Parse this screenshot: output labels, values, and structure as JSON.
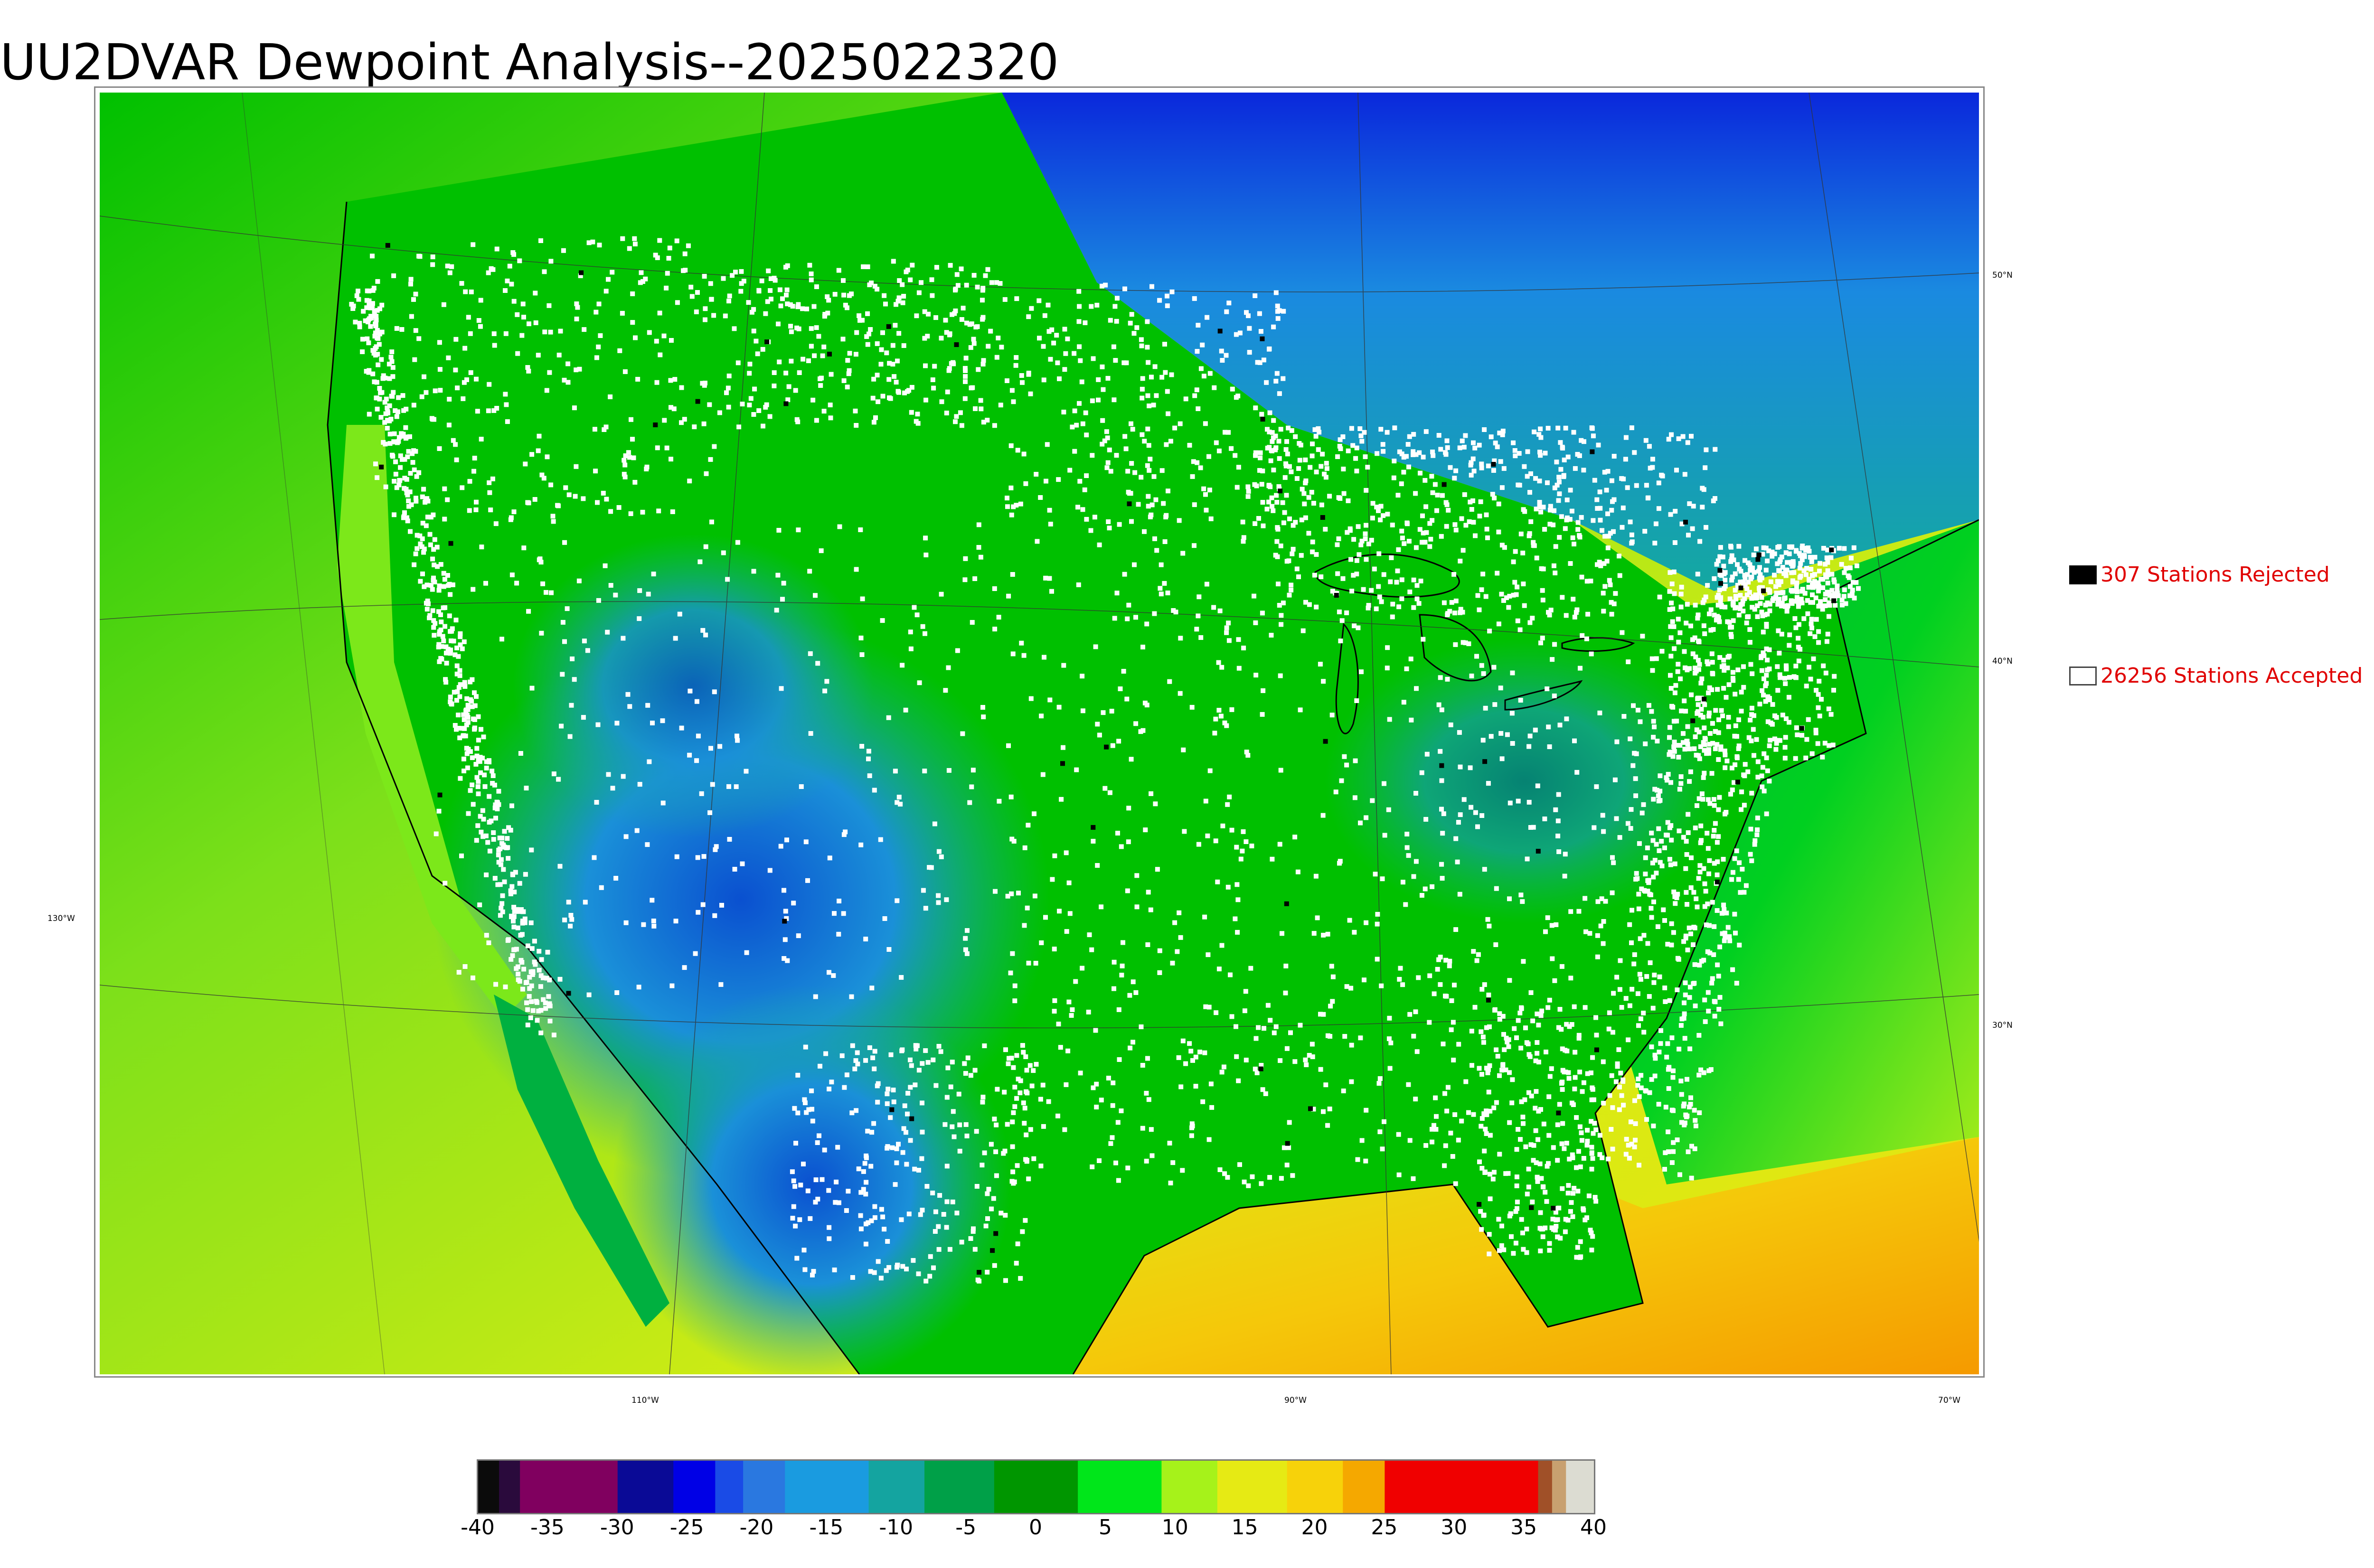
{
  "title": "UU2DVAR Dewpoint Analysis--2025022320",
  "legend": {
    "rejected": {
      "label": "307 Stations Rejected",
      "color": "#000000"
    },
    "accepted": {
      "label": "26256 Stations Accepted",
      "color": "#ffffff"
    }
  },
  "latitude_labels": [
    "50°N",
    "40°N",
    "30°N"
  ],
  "longitude_labels": [
    "130°W",
    "110°W",
    "90°W",
    "70°W"
  ],
  "colorbar": {
    "ticks": [
      "-40",
      "-35",
      "-30",
      "-25",
      "-20",
      "-15",
      "-10",
      "-5",
      "0",
      "5",
      "10",
      "15",
      "20",
      "25",
      "30",
      "35",
      "40"
    ],
    "range": [
      -40,
      40
    ],
    "bands": [
      {
        "from": -40,
        "to": -38.5,
        "color": "#0b0b0b"
      },
      {
        "from": -38.5,
        "to": -37,
        "color": "#2a0a3c"
      },
      {
        "from": -37,
        "to": -30,
        "color": "#80005f"
      },
      {
        "from": -30,
        "to": -26,
        "color": "#0a0a96"
      },
      {
        "from": -26,
        "to": -23,
        "color": "#0000e6"
      },
      {
        "from": -23,
        "to": -21,
        "color": "#1a4be6"
      },
      {
        "from": -21,
        "to": -18,
        "color": "#2a78e0"
      },
      {
        "from": -18,
        "to": -12,
        "color": "#1a9be0"
      },
      {
        "from": -12,
        "to": -8,
        "color": "#14a4a0"
      },
      {
        "from": -8,
        "to": -3,
        "color": "#00a048"
      },
      {
        "from": -3,
        "to": 3,
        "color": "#009600"
      },
      {
        "from": 3,
        "to": 9,
        "color": "#00e61a"
      },
      {
        "from": 9,
        "to": 13,
        "color": "#a6f21a"
      },
      {
        "from": 13,
        "to": 18,
        "color": "#e6ea14"
      },
      {
        "from": 18,
        "to": 22,
        "color": "#f7d20a"
      },
      {
        "from": 22,
        "to": 25,
        "color": "#f5a800"
      },
      {
        "from": 25,
        "to": 36,
        "color": "#f00000"
      },
      {
        "from": 36,
        "to": 37,
        "color": "#a05028"
      },
      {
        "from": 37,
        "to": 38,
        "color": "#c8a070"
      },
      {
        "from": 38,
        "to": 40,
        "color": "#dcdcd2"
      }
    ]
  },
  "colors": {
    "ocean_pacific": "#cfe81a",
    "ocean_gulf": "#f5b800",
    "land_green": "#00c800",
    "dry_blue": "#1a9bd0",
    "cold_north": "#0a2ad8"
  }
}
